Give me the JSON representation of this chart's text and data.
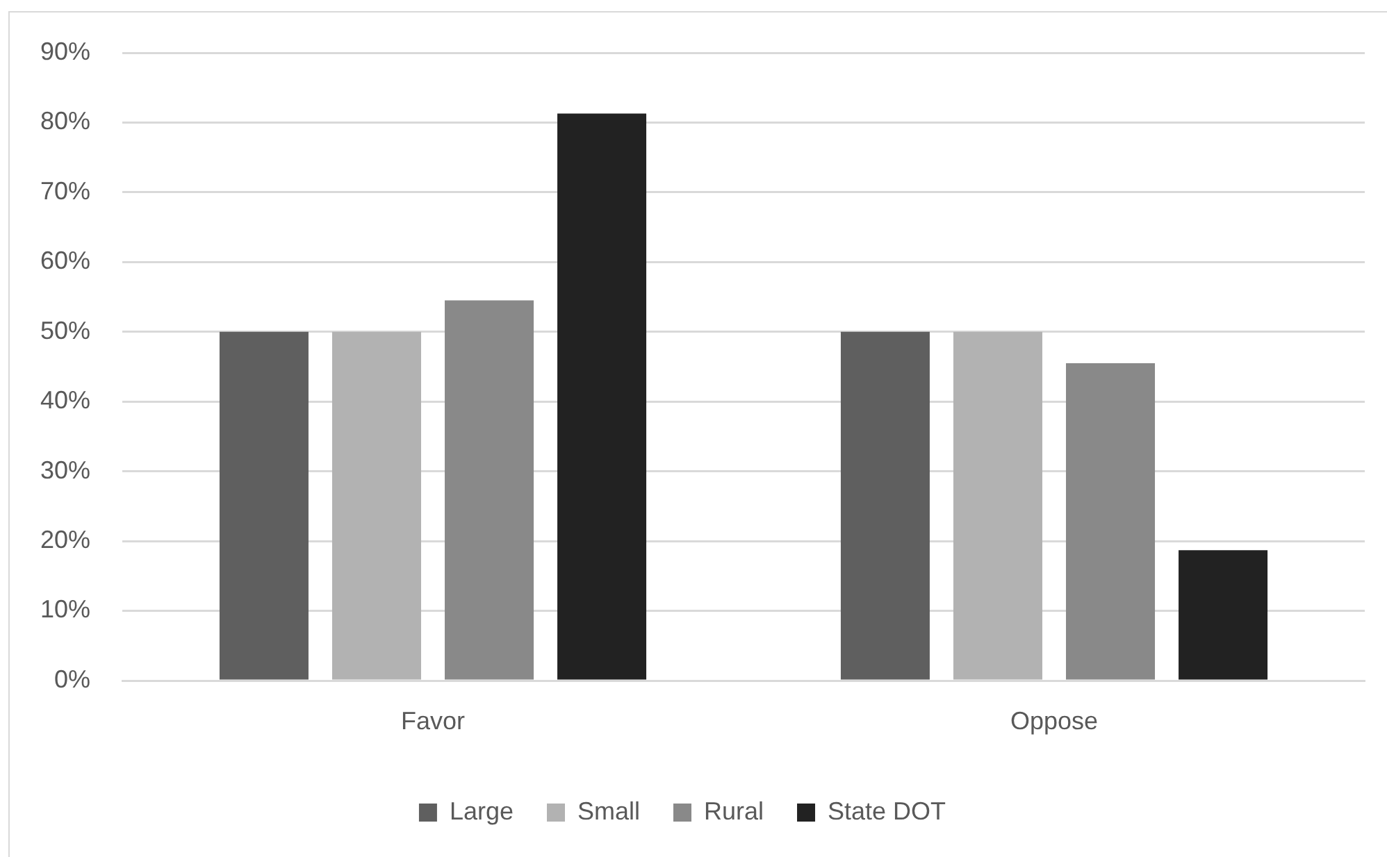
{
  "chart_data": {
    "type": "bar",
    "categories": [
      "Favor",
      "Oppose"
    ],
    "series": [
      {
        "name": "Large",
        "color": "#5f5f5f",
        "values": [
          50,
          50
        ]
      },
      {
        "name": "Small",
        "color": "#b2b2b2",
        "values": [
          50,
          50
        ]
      },
      {
        "name": "Rural",
        "color": "#898989",
        "values": [
          54.5,
          45.5
        ]
      },
      {
        "name": "State DOT",
        "color": "#222222",
        "values": [
          81.3,
          18.7
        ]
      }
    ],
    "ylim": [
      0,
      90
    ],
    "yticks": [
      {
        "value": 0,
        "label": "0%"
      },
      {
        "value": 10,
        "label": "10%"
      },
      {
        "value": 20,
        "label": "20%"
      },
      {
        "value": 30,
        "label": "30%"
      },
      {
        "value": 40,
        "label": "40%"
      },
      {
        "value": 50,
        "label": "50%"
      },
      {
        "value": 60,
        "label": "60%"
      },
      {
        "value": 70,
        "label": "70%"
      },
      {
        "value": 80,
        "label": "80%"
      },
      {
        "value": 90,
        "label": "90%"
      }
    ],
    "grid": "y",
    "legend": "bottom"
  }
}
